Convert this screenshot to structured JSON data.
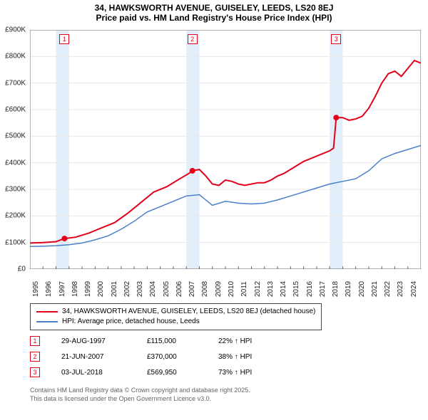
{
  "title_line1": "34, HAWKSWORTH AVENUE, GUISELEY, LEEDS, LS20 8EJ",
  "title_line2": "Price paid vs. HM Land Registry's House Price Index (HPI)",
  "chart": {
    "type": "line",
    "background_color": "#ffffff",
    "grid_color": "#e8e8e8",
    "highlight_band_color": "#e2eefa",
    "x_axis": {
      "start_year": 1995,
      "end_year": 2025,
      "tick_years": [
        1995,
        1996,
        1997,
        1998,
        1999,
        2000,
        2001,
        2002,
        2003,
        2004,
        2005,
        2006,
        2007,
        2008,
        2009,
        2010,
        2011,
        2012,
        2013,
        2014,
        2015,
        2016,
        2017,
        2018,
        2019,
        2020,
        2021,
        2022,
        2023,
        2024
      ],
      "label_fontsize": 10
    },
    "y_axis": {
      "min": 0,
      "max": 900000,
      "tick_step": 100000,
      "tick_labels": [
        "£0",
        "£100K",
        "£200K",
        "£300K",
        "£400K",
        "£500K",
        "£600K",
        "£700K",
        "£800K",
        "£900K"
      ],
      "label_fontsize": 10
    },
    "series": [
      {
        "name": "price_paid",
        "label": "34, HAWKSWORTH AVENUE, GUISELEY, LEEDS, LS20 8EJ (detached house)",
        "color": "#e2001a",
        "line_width": 2,
        "data": [
          [
            1995.0,
            98000
          ],
          [
            1996.0,
            100000
          ],
          [
            1997.0,
            103000
          ],
          [
            1997.65,
            115000
          ],
          [
            1998.5,
            120000
          ],
          [
            1999.5,
            135000
          ],
          [
            2000.5,
            155000
          ],
          [
            2001.5,
            175000
          ],
          [
            2002.5,
            210000
          ],
          [
            2003.5,
            250000
          ],
          [
            2004.5,
            290000
          ],
          [
            2005.5,
            310000
          ],
          [
            2006.5,
            340000
          ],
          [
            2007.2,
            360000
          ],
          [
            2007.47,
            370000
          ],
          [
            2008.0,
            375000
          ],
          [
            2008.5,
            350000
          ],
          [
            2009.0,
            320000
          ],
          [
            2009.5,
            315000
          ],
          [
            2010.0,
            335000
          ],
          [
            2010.5,
            330000
          ],
          [
            2011.0,
            320000
          ],
          [
            2011.5,
            315000
          ],
          [
            2012.0,
            320000
          ],
          [
            2012.5,
            325000
          ],
          [
            2013.0,
            325000
          ],
          [
            2013.5,
            335000
          ],
          [
            2014.0,
            350000
          ],
          [
            2014.5,
            360000
          ],
          [
            2015.0,
            375000
          ],
          [
            2015.5,
            390000
          ],
          [
            2016.0,
            405000
          ],
          [
            2016.5,
            415000
          ],
          [
            2017.0,
            425000
          ],
          [
            2017.5,
            435000
          ],
          [
            2018.0,
            445000
          ],
          [
            2018.3,
            455000
          ],
          [
            2018.5,
            569950
          ],
          [
            2019.0,
            570000
          ],
          [
            2019.5,
            560000
          ],
          [
            2020.0,
            565000
          ],
          [
            2020.5,
            575000
          ],
          [
            2021.0,
            605000
          ],
          [
            2021.5,
            650000
          ],
          [
            2022.0,
            700000
          ],
          [
            2022.5,
            735000
          ],
          [
            2023.0,
            745000
          ],
          [
            2023.5,
            725000
          ],
          [
            2024.0,
            755000
          ],
          [
            2024.5,
            785000
          ],
          [
            2025.0,
            775000
          ]
        ],
        "sale_markers": [
          {
            "year": 1997.65,
            "value": 115000
          },
          {
            "year": 2007.47,
            "value": 370000
          },
          {
            "year": 2018.5,
            "value": 569950
          }
        ]
      },
      {
        "name": "hpi",
        "label": "HPI: Average price, detached house, Leeds",
        "color": "#4a7fc8",
        "line_width": 1.5,
        "data": [
          [
            1995.0,
            85000
          ],
          [
            1996.0,
            86000
          ],
          [
            1997.0,
            88000
          ],
          [
            1998.0,
            92000
          ],
          [
            1999.0,
            98000
          ],
          [
            2000.0,
            110000
          ],
          [
            2001.0,
            125000
          ],
          [
            2002.0,
            150000
          ],
          [
            2003.0,
            180000
          ],
          [
            2004.0,
            215000
          ],
          [
            2005.0,
            235000
          ],
          [
            2006.0,
            255000
          ],
          [
            2007.0,
            275000
          ],
          [
            2008.0,
            280000
          ],
          [
            2008.5,
            260000
          ],
          [
            2009.0,
            240000
          ],
          [
            2010.0,
            255000
          ],
          [
            2011.0,
            248000
          ],
          [
            2012.0,
            245000
          ],
          [
            2013.0,
            248000
          ],
          [
            2014.0,
            260000
          ],
          [
            2015.0,
            275000
          ],
          [
            2016.0,
            290000
          ],
          [
            2017.0,
            305000
          ],
          [
            2018.0,
            320000
          ],
          [
            2019.0,
            330000
          ],
          [
            2020.0,
            340000
          ],
          [
            2021.0,
            370000
          ],
          [
            2022.0,
            415000
          ],
          [
            2023.0,
            435000
          ],
          [
            2024.0,
            450000
          ],
          [
            2025.0,
            465000
          ]
        ]
      }
    ],
    "marker_boxes": [
      {
        "label": "1",
        "year": 1997.65,
        "color": "#e2001a"
      },
      {
        "label": "2",
        "year": 2007.47,
        "color": "#e2001a"
      },
      {
        "label": "3",
        "year": 2018.5,
        "color": "#e2001a"
      }
    ]
  },
  "legend": {
    "rows": [
      {
        "label": "34, HAWKSWORTH AVENUE, GUISELEY, LEEDS, LS20 8EJ (detached house)",
        "color": "#e2001a"
      },
      {
        "label": "HPI: Average price, detached house, Leeds",
        "color": "#4a7fc8"
      }
    ]
  },
  "sales": [
    {
      "marker": "1",
      "color": "#e2001a",
      "date": "29-AUG-1997",
      "price": "£115,000",
      "pct": "22% ↑ HPI"
    },
    {
      "marker": "2",
      "color": "#e2001a",
      "date": "21-JUN-2007",
      "price": "£370,000",
      "pct": "38% ↑ HPI"
    },
    {
      "marker": "3",
      "color": "#e2001a",
      "date": "03-JUL-2018",
      "price": "£569,950",
      "pct": "73% ↑ HPI"
    }
  ],
  "footer_line1": "Contains HM Land Registry data © Crown copyright and database right 2025.",
  "footer_line2": "This data is licensed under the Open Government Licence v3.0."
}
